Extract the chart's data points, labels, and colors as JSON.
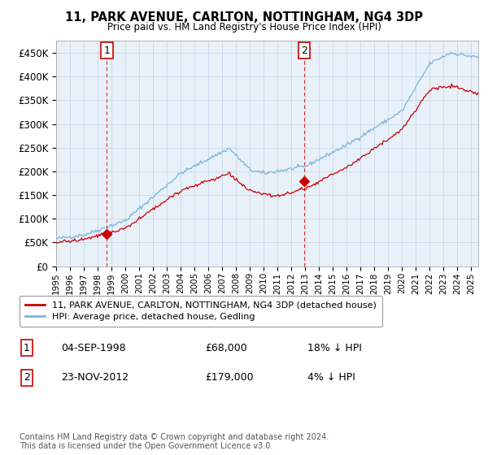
{
  "title": "11, PARK AVENUE, CARLTON, NOTTINGHAM, NG4 3DP",
  "subtitle": "Price paid vs. HM Land Registry's House Price Index (HPI)",
  "ytick_values": [
    0,
    50000,
    100000,
    150000,
    200000,
    250000,
    300000,
    350000,
    400000,
    450000
  ],
  "ylim": [
    0,
    475000
  ],
  "xlim_start": 1995.0,
  "xlim_end": 2025.5,
  "hpi_color": "#7ab4d8",
  "price_color": "#cc0000",
  "vline_color": "#cc0000",
  "sale1_x": 1998.67,
  "sale1_y": 68000,
  "sale1_label": "1",
  "sale2_x": 2012.9,
  "sale2_y": 179000,
  "sale2_label": "2",
  "legend_line1": "11, PARK AVENUE, CARLTON, NOTTINGHAM, NG4 3DP (detached house)",
  "legend_line2": "HPI: Average price, detached house, Gedling",
  "table_rows": [
    {
      "num": "1",
      "date": "04-SEP-1998",
      "price": "£68,000",
      "hpi": "18% ↓ HPI"
    },
    {
      "num": "2",
      "date": "23-NOV-2012",
      "price": "£179,000",
      "hpi": "4% ↓ HPI"
    }
  ],
  "footnote": "Contains HM Land Registry data © Crown copyright and database right 2024.\nThis data is licensed under the Open Government Licence v3.0.",
  "bg_color": "#ffffff",
  "grid_color": "#c8d8e8",
  "plot_bg_color": "#e8f0f8"
}
